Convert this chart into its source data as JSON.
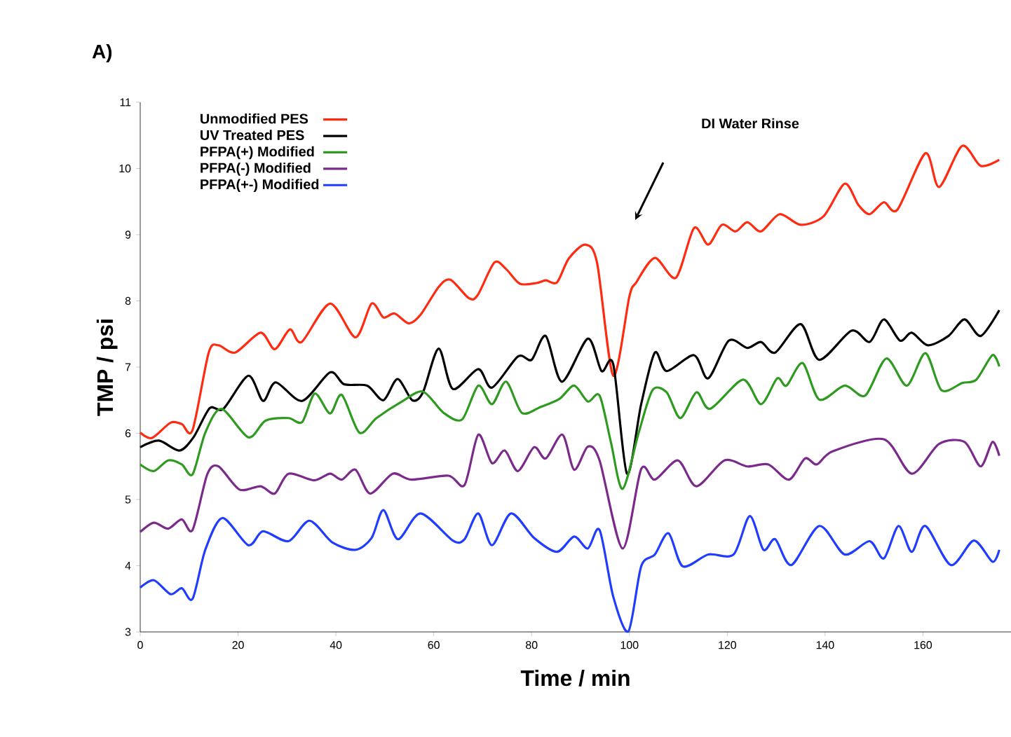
{
  "chart_data": {
    "type": "line",
    "title": "A)",
    "xlabel": "Time / min",
    "ylabel": "TMP / psi",
    "xlim": [
      0,
      178
    ],
    "xticks": [
      0,
      20,
      40,
      60,
      80,
      100,
      120,
      140,
      160
    ],
    "ylim": [
      3,
      11
    ],
    "yticks": [
      3,
      4,
      5,
      6,
      7,
      8,
      9,
      10,
      11
    ],
    "grid": false,
    "legend": "top left",
    "marker": "none",
    "line_style": "solid",
    "annotations": [
      "DI Water Rinse"
    ],
    "series": [
      {
        "name": "Unmodified PES",
        "color": "#ff2a0f",
        "x": [
          0,
          2.4,
          6.2,
          8.5,
          10.7,
          14,
          16,
          19.4,
          24.6,
          27.5,
          30.6,
          33,
          38.8,
          44,
          47.3,
          49.7,
          52,
          54.9,
          57.3,
          61,
          63.4,
          67.2,
          69,
          72.4,
          74.8,
          77.6,
          81,
          82.9,
          85.2,
          87.6,
          91,
          93.4,
          96.7,
          100,
          101.4,
          105.2,
          109.5,
          113.2,
          116.1,
          118.9,
          121.7,
          124.1,
          126.9,
          130.7,
          135,
          139.7,
          144,
          146.8,
          149.1,
          152,
          154.8,
          160.5,
          163.3,
          168,
          171.8,
          175.6
        ],
        "values": [
          6.01,
          5.93,
          6.16,
          6.14,
          6.05,
          7.22,
          7.33,
          7.22,
          7.52,
          7.27,
          7.57,
          7.38,
          7.96,
          7.45,
          7.96,
          7.75,
          7.81,
          7.66,
          7.79,
          8.21,
          8.32,
          8.04,
          8.09,
          8.58,
          8.48,
          8.26,
          8.27,
          8.31,
          8.28,
          8.64,
          8.85,
          8.57,
          6.87,
          8.07,
          8.28,
          8.65,
          8.35,
          9.1,
          8.85,
          9.15,
          9.05,
          9.19,
          9.05,
          9.31,
          9.15,
          9.28,
          9.77,
          9.45,
          9.31,
          9.49,
          9.38,
          10.23,
          9.72,
          10.34,
          10.04,
          10.13
        ]
      },
      {
        "name": "UV Treated PES",
        "color": "#000000",
        "x": [
          0,
          3.8,
          8,
          10.9,
          14.2,
          17,
          22.1,
          25.1,
          27.7,
          33.1,
          38.8,
          41.7,
          46.4,
          49.7,
          52.6,
          55.6,
          57.8,
          61,
          63.9,
          69.1,
          71.9,
          77.2,
          80,
          82.9,
          86.2,
          91.5,
          94.3,
          96.7,
          99.5,
          102.4,
          105.2,
          107.6,
          113.2,
          116.1,
          120.3,
          124.1,
          126.9,
          129.8,
          135,
          138.8,
          145.4,
          149.1,
          152,
          155.3,
          157.7,
          161,
          165.2,
          168.5,
          171.8,
          175.6
        ],
        "values": [
          5.79,
          5.89,
          5.74,
          5.94,
          6.38,
          6.37,
          6.87,
          6.49,
          6.77,
          6.49,
          6.92,
          6.74,
          6.72,
          6.5,
          6.82,
          6.5,
          6.62,
          7.28,
          6.67,
          6.97,
          6.69,
          7.16,
          7.11,
          7.47,
          6.78,
          7.43,
          6.94,
          7.04,
          5.39,
          6.44,
          7.22,
          6.94,
          7.18,
          6.83,
          7.4,
          7.29,
          7.38,
          7.22,
          7.65,
          7.11,
          7.55,
          7.38,
          7.72,
          7.4,
          7.52,
          7.33,
          7.47,
          7.72,
          7.47,
          7.86
        ]
      },
      {
        "name": "PFPA(+)  Modified",
        "color": "#2e9a1f",
        "x": [
          0,
          2.8,
          5.7,
          8.5,
          10.7,
          13.3,
          16.6,
          22.1,
          25.6,
          30.3,
          33.1,
          35.7,
          38.8,
          41.2,
          44.8,
          48.3,
          53.5,
          57.8,
          62,
          65.8,
          69.1,
          71.9,
          74.8,
          78,
          81.9,
          85.7,
          88.7,
          91.5,
          93.9,
          96.2,
          98.6,
          101.9,
          104.7,
          107.6,
          110.4,
          113.7,
          116.5,
          123.2,
          126.9,
          130.2,
          132.1,
          135.4,
          138.8,
          144,
          148.2,
          152.5,
          156.7,
          160.5,
          163.8,
          168,
          170.9,
          174.2,
          175.6
        ],
        "values": [
          5.53,
          5.43,
          5.59,
          5.53,
          5.38,
          6.01,
          6.37,
          5.94,
          6.19,
          6.23,
          6.17,
          6.6,
          6.3,
          6.58,
          6.01,
          6.23,
          6.48,
          6.63,
          6.31,
          6.21,
          6.72,
          6.44,
          6.78,
          6.31,
          6.4,
          6.52,
          6.72,
          6.48,
          6.57,
          5.87,
          5.16,
          6.01,
          6.65,
          6.62,
          6.23,
          6.62,
          6.37,
          6.81,
          6.44,
          6.83,
          6.72,
          7.06,
          6.51,
          6.72,
          6.57,
          7.13,
          6.72,
          7.21,
          6.65,
          6.76,
          6.81,
          7.18,
          7.01
        ]
      },
      {
        "name": "PFPA(-)   Modified",
        "color": "#7b2a8c",
        "x": [
          0,
          2.8,
          5.7,
          8.5,
          10.7,
          13.7,
          16,
          20.3,
          24.6,
          27.5,
          30.3,
          35.5,
          38.8,
          41.2,
          44,
          47,
          51.6,
          55.4,
          63,
          66.3,
          69.1,
          71.9,
          74.5,
          77.2,
          80.5,
          82.9,
          86.3,
          88.7,
          91.5,
          93.9,
          98.6,
          102.4,
          105.2,
          109.9,
          113.7,
          119.4,
          124.1,
          128.4,
          132.6,
          135.9,
          138.3,
          141.6,
          152,
          157.7,
          163.3,
          168.5,
          171.8,
          174.2,
          175.6
        ],
        "values": [
          4.51,
          4.65,
          4.56,
          4.7,
          4.54,
          5.38,
          5.5,
          5.15,
          5.2,
          5.09,
          5.39,
          5.29,
          5.39,
          5.3,
          5.45,
          5.09,
          5.39,
          5.3,
          5.36,
          5.22,
          5.98,
          5.55,
          5.74,
          5.43,
          5.79,
          5.62,
          5.98,
          5.45,
          5.8,
          5.59,
          4.26,
          5.46,
          5.3,
          5.59,
          5.2,
          5.59,
          5.5,
          5.53,
          5.3,
          5.62,
          5.53,
          5.73,
          5.91,
          5.39,
          5.84,
          5.87,
          5.5,
          5.87,
          5.66
        ]
      },
      {
        "name": "PFPA(+-) Modified",
        "color": "#1f3cff",
        "x": [
          0,
          2.8,
          6.2,
          8.5,
          10.7,
          13.3,
          16.8,
          22.1,
          25.1,
          30.3,
          34.6,
          39.3,
          44,
          47.3,
          49.7,
          52.7,
          57.3,
          63.9,
          66.3,
          69.1,
          71.9,
          75.8,
          80.5,
          85.2,
          88.7,
          91.5,
          93.9,
          96.7,
          99.8,
          102.4,
          105.2,
          108,
          110.9,
          116.1,
          121.3,
          124.6,
          127.4,
          129.8,
          133.1,
          138.8,
          144,
          149.1,
          152,
          155,
          157.7,
          160.5,
          165.7,
          170.4,
          174.2,
          175.6
        ],
        "values": [
          3.67,
          3.78,
          3.57,
          3.66,
          3.5,
          4.24,
          4.72,
          4.31,
          4.52,
          4.37,
          4.68,
          4.35,
          4.24,
          4.42,
          4.84,
          4.4,
          4.79,
          4.38,
          4.4,
          4.79,
          4.31,
          4.79,
          4.42,
          4.21,
          4.44,
          4.26,
          4.54,
          3.53,
          3.01,
          3.99,
          4.17,
          4.49,
          3.99,
          4.17,
          4.17,
          4.75,
          4.24,
          4.4,
          4.01,
          4.6,
          4.17,
          4.37,
          4.11,
          4.6,
          4.21,
          4.6,
          4.01,
          4.38,
          4.06,
          4.24
        ]
      }
    ]
  }
}
